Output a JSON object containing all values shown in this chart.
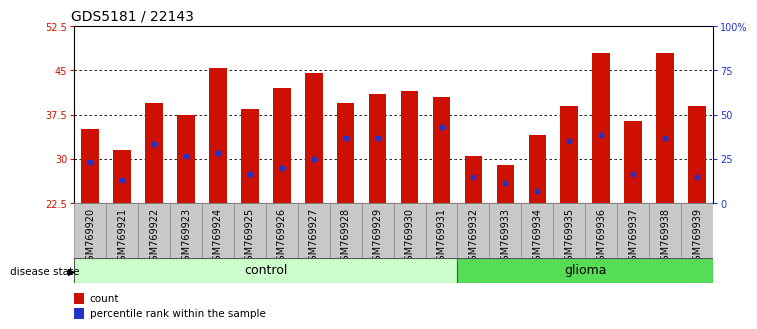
{
  "title": "GDS5181 / 22143",
  "samples": [
    "GSM769920",
    "GSM769921",
    "GSM769922",
    "GSM769923",
    "GSM769924",
    "GSM769925",
    "GSM769926",
    "GSM769927",
    "GSM769928",
    "GSM769929",
    "GSM769930",
    "GSM769931",
    "GSM769932",
    "GSM769933",
    "GSM769934",
    "GSM769935",
    "GSM769936",
    "GSM769937",
    "GSM769938",
    "GSM769939"
  ],
  "bar_heights": [
    35.0,
    31.5,
    39.5,
    37.5,
    45.5,
    38.5,
    42.0,
    44.5,
    39.5,
    41.0,
    41.5,
    40.5,
    30.5,
    29.0,
    34.0,
    39.0,
    48.0,
    36.5,
    48.0,
    39.0
  ],
  "blue_dot_y": [
    29.5,
    26.5,
    32.5,
    30.5,
    31.0,
    27.5,
    28.5,
    30.0,
    33.5,
    33.5,
    null,
    35.5,
    27.0,
    26.0,
    24.5,
    33.0,
    34.0,
    27.5,
    33.5,
    27.0
  ],
  "ymin": 22.5,
  "ymax": 52.5,
  "yticks_left": [
    22.5,
    30.0,
    37.5,
    45.0,
    52.5
  ],
  "yticklabels_left": [
    "22.5",
    "30",
    "37.5",
    "45",
    "52.5"
  ],
  "yticks_right": [
    0,
    25,
    50,
    75,
    100
  ],
  "yticklabels_right": [
    "0",
    "25",
    "50",
    "75",
    "100%"
  ],
  "bar_color": "#cc1100",
  "dot_color": "#2233cc",
  "bar_width": 0.55,
  "control_count": 12,
  "glioma_count": 8,
  "control_label": "control",
  "glioma_label": "glioma",
  "disease_state_label": "disease state",
  "legend_count": "count",
  "legend_percentile": "percentile rank within the sample",
  "grid_yticks": [
    30.0,
    37.5,
    45.0
  ],
  "xtick_bg": "#c8c8c8",
  "control_bg": "#ccffcc",
  "glioma_bg": "#55dd55",
  "title_fontsize": 10,
  "tick_fontsize": 7,
  "label_fontsize": 9
}
